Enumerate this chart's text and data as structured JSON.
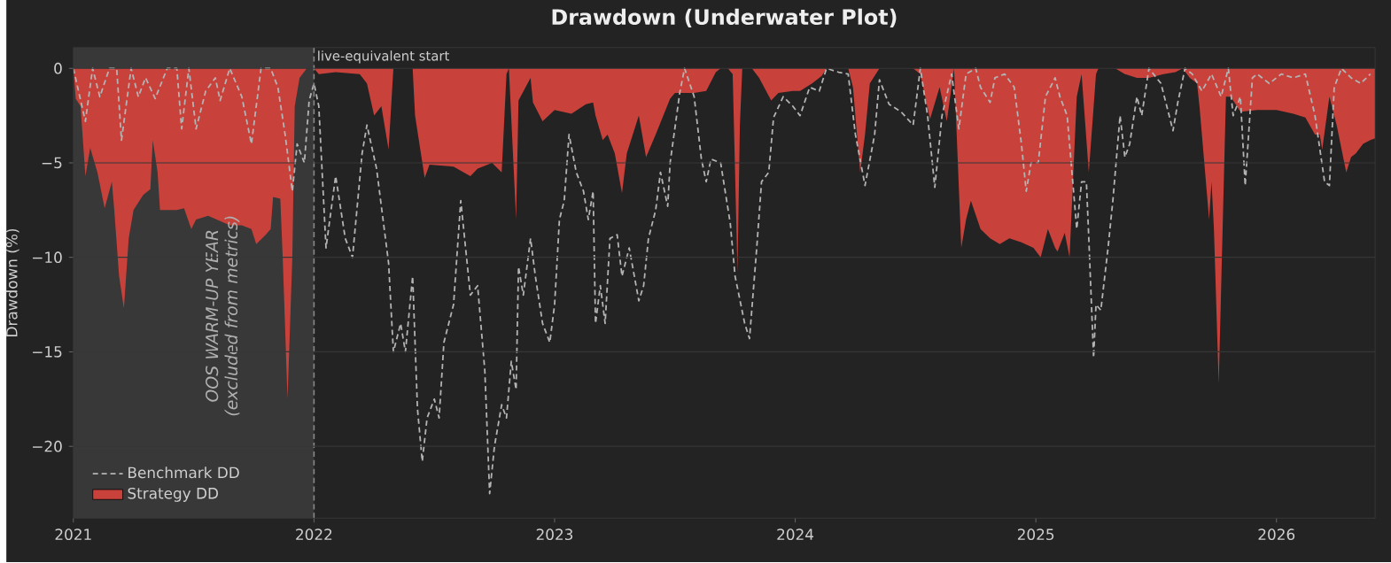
{
  "chart_data": {
    "type": "line",
    "title": "Drawdown (Underwater Plot)",
    "ylabel": "Drawdown (%)",
    "xlim": [
      "2021-01-01",
      "2026-05-29"
    ],
    "xticks": [
      "2021",
      "2022",
      "2023",
      "2024",
      "2025",
      "2026"
    ],
    "ylim": [
      -23.8,
      1.1
    ],
    "yticks": [
      {
        "value": -20,
        "label": "−20"
      },
      {
        "value": -15,
        "label": "−15"
      },
      {
        "value": -10,
        "label": "−10"
      },
      {
        "value": -5,
        "label": "−5"
      },
      0
    ],
    "grid": "y",
    "legend": "bottom left",
    "bands": [
      {
        "axis": "x",
        "from": "2021-01-01",
        "to": "2022-01-01",
        "label": "OOS WARM-UP YEAR (excluded from metrics)",
        "color": "#383838"
      }
    ],
    "ref_lines": [
      {
        "axis": "x",
        "value": "2022-01-01",
        "label": "live-equivalent start",
        "color": "#8a8a8a",
        "line_style": "dashed"
      }
    ],
    "series": [
      {
        "name": "Benchmark DD",
        "line_style": "dashed",
        "color": "#b4b4b4",
        "x": [
          "2021-01-01",
          "2021-01-18",
          "2021-02-01",
          "2021-02-10",
          "2021-02-23",
          "2021-03-07",
          "2021-03-16",
          "2021-03-30",
          "2021-04-08",
          "2021-04-21",
          "2021-05-04",
          "2021-05-22",
          "2021-06-06",
          "2021-06-13",
          "2021-06-24",
          "2021-07-07",
          "2021-07-20",
          "2021-08-03",
          "2021-08-12",
          "2021-08-26",
          "2021-09-13",
          "2021-09-27",
          "2021-10-14",
          "2021-10-27",
          "2021-11-06",
          "2021-11-19",
          "2021-11-28",
          "2021-12-07",
          "2021-12-16",
          "2021-12-25",
          "2022-01-01",
          "2022-01-08",
          "2022-01-21",
          "2022-02-04",
          "2022-02-17",
          "2022-03-01",
          "2022-03-14",
          "2022-03-23",
          "2022-04-06",
          "2022-04-24",
          "2022-05-03",
          "2022-05-12",
          "2022-05-20",
          "2022-05-30",
          "2022-06-08",
          "2022-06-15",
          "2022-06-21",
          "2022-07-01",
          "2022-07-09",
          "2022-07-18",
          "2022-08-01",
          "2022-08-12",
          "2022-08-28",
          "2022-09-07",
          "2022-09-17",
          "2022-09-26",
          "2022-10-03",
          "2022-10-12",
          "2022-10-19",
          "2022-10-28",
          "2022-11-02",
          "2022-11-08",
          "2022-11-15",
          "2022-11-24",
          "2022-12-03",
          "2022-12-12",
          "2022-12-23",
          "2023-01-01",
          "2023-01-08",
          "2023-01-17",
          "2023-01-24",
          "2023-02-04",
          "2023-02-12",
          "2023-02-21",
          "2023-02-28",
          "2023-03-05",
          "2023-03-11",
          "2023-03-18",
          "2023-03-27",
          "2023-04-06",
          "2023-04-15",
          "2023-04-24",
          "2023-05-07",
          "2023-05-16",
          "2023-05-25",
          "2023-06-03",
          "2023-06-12",
          "2023-06-21",
          "2023-06-27",
          "2023-07-09",
          "2023-07-18",
          "2023-08-01",
          "2023-08-10",
          "2023-08-19",
          "2023-08-27",
          "2023-09-10",
          "2023-09-24",
          "2023-10-02",
          "2023-10-16",
          "2023-10-25",
          "2023-11-03",
          "2023-11-12",
          "2023-11-21",
          "2023-11-30",
          "2023-12-13",
          "2023-12-27",
          "2024-01-10",
          "2024-01-23",
          "2024-02-06",
          "2024-02-19",
          "2024-03-07",
          "2024-03-20",
          "2024-04-03",
          "2024-04-16",
          "2024-04-30",
          "2024-05-08",
          "2024-05-22",
          "2024-06-09",
          "2024-06-27",
          "2024-07-10",
          "2024-07-19",
          "2024-08-02",
          "2024-08-13",
          "2024-08-25",
          "2024-09-05",
          "2024-09-16",
          "2024-09-30",
          "2024-10-09",
          "2024-10-23",
          "2024-11-01",
          "2024-11-15",
          "2024-11-28",
          "2024-12-11",
          "2024-12-18",
          "2024-12-25",
          "2025-01-03",
          "2025-01-17",
          "2025-01-30",
          "2025-02-08",
          "2025-02-17",
          "2025-02-26",
          "2025-03-03",
          "2025-03-10",
          "2025-03-17",
          "2025-03-23",
          "2025-03-29",
          "2025-04-04",
          "2025-04-10",
          "2025-04-19",
          "2025-04-28",
          "2025-05-07",
          "2025-05-16",
          "2025-05-25",
          "2025-06-03",
          "2025-06-12",
          "2025-06-21",
          "2025-07-09",
          "2025-07-27",
          "2025-08-05",
          "2025-08-14",
          "2025-08-27",
          "2025-09-10",
          "2025-09-24",
          "2025-10-10",
          "2025-10-20",
          "2025-10-29",
          "2025-11-06",
          "2025-11-16",
          "2025-11-25",
          "2025-12-04",
          "2025-12-22",
          "2026-01-08",
          "2026-01-26",
          "2026-02-13",
          "2026-03-02",
          "2026-03-15",
          "2026-03-21",
          "2026-03-28",
          "2026-04-11",
          "2026-04-24",
          "2026-05-08",
          "2026-05-25"
        ],
        "values": [
          0,
          -2.8,
          0,
          -1.5,
          0,
          0,
          -3.8,
          0,
          -1.5,
          -0.5,
          -1.6,
          0,
          0,
          -3.2,
          0,
          -3.2,
          -1.2,
          -0.5,
          -1.7,
          0,
          -1.5,
          -4,
          0,
          0,
          -1,
          -3.5,
          -6.5,
          -4,
          -5,
          -1.7,
          -0.8,
          -2,
          -9.5,
          -5.7,
          -9,
          -10,
          -4.5,
          -3,
          -5.3,
          -10.3,
          -15,
          -13.5,
          -15,
          -11,
          -18,
          -20.8,
          -18.5,
          -17.5,
          -18.5,
          -14.5,
          -12.5,
          -7,
          -12,
          -11.5,
          -16,
          -22.5,
          -20,
          -17.8,
          -18.5,
          -15.5,
          -17,
          -10.5,
          -12,
          -9,
          -11,
          -13.5,
          -14.5,
          -12.5,
          -8,
          -7,
          -3.5,
          -5.5,
          -6.5,
          -8,
          -6.5,
          -13.5,
          -11.5,
          -13.5,
          -9,
          -8.8,
          -11,
          -9.5,
          -12.3,
          -11.5,
          -9,
          -7.5,
          -5.5,
          -7.3,
          -5,
          -1.3,
          0,
          -1.5,
          -4.8,
          -6,
          -4.8,
          -5,
          -8.2,
          -11,
          -13.5,
          -14.3,
          -9.5,
          -6,
          -5.5,
          -2.6,
          -1.5,
          -2,
          -2.5,
          -1,
          -1.2,
          0,
          -0.2,
          -0.3,
          -3.5,
          -6.2,
          -3.5,
          -0.6,
          -1.9,
          -2.3,
          -3,
          0,
          -2.5,
          -6.3,
          -2.5,
          -0.3,
          -3.2,
          -0.3,
          0,
          -1,
          -1.8,
          -0.5,
          -0.3,
          -1,
          -4,
          -6.5,
          -5,
          -5,
          -1.5,
          -0.5,
          -1.5,
          -2.5,
          -5.5,
          -8.5,
          -6,
          -6,
          -9,
          -15.3,
          -12.5,
          -12.8,
          -9.5,
          -7,
          -2.5,
          -4.7,
          -4,
          -1.5,
          -2.5,
          0,
          -0.8,
          -3.3,
          -1.8,
          0,
          -0.3,
          -1.2,
          -0.3,
          -1.5,
          0,
          -2.5,
          -1.5,
          -6.2,
          -0.5,
          -0.3,
          -0.8,
          -0.3,
          -0.5,
          -0.3,
          -2.5,
          -6,
          -6.2,
          -1,
          0,
          -0.5,
          -0.8,
          -0.3
        ]
      },
      {
        "name": "Strategy DD",
        "type": "area",
        "color": "#c8423b",
        "x": [
          "2021-01-01",
          "2021-01-06",
          "2021-01-12",
          "2021-01-18",
          "2021-01-27",
          "2021-02-06",
          "2021-02-19",
          "2021-02-28",
          "2021-03-03",
          "2021-03-12",
          "2021-03-18",
          "2021-03-25",
          "2021-04-04",
          "2021-04-17",
          "2021-04-26",
          "2021-05-01",
          "2021-05-07",
          "2021-05-14",
          "2021-06-06",
          "2021-06-19",
          "2021-06-28",
          "2021-07-07",
          "2021-07-25",
          "2021-08-25",
          "2021-09-13",
          "2021-09-27",
          "2021-10-05",
          "2021-10-19",
          "2021-10-28",
          "2021-11-01",
          "2021-11-10",
          "2021-11-15",
          "2021-11-22",
          "2021-11-28",
          "2021-12-02",
          "2021-12-11",
          "2021-12-20",
          "2022-01-01",
          "2022-01-08",
          "2022-02-04",
          "2022-03-10",
          "2022-03-23",
          "2022-04-02",
          "2022-04-15",
          "2022-04-24",
          "2022-05-03",
          "2022-05-30",
          "2022-06-04",
          "2022-06-17",
          "2022-06-26",
          "2022-08-01",
          "2022-08-28",
          "2022-09-07",
          "2022-09-29",
          "2022-10-13",
          "2022-10-21",
          "2022-10-25",
          "2022-11-04",
          "2022-11-08",
          "2022-11-25",
          "2022-11-28",
          "2022-12-12",
          "2022-12-31",
          "2023-01-26",
          "2023-02-17",
          "2023-03-01",
          "2023-03-05",
          "2023-03-14",
          "2023-03-23",
          "2023-04-01",
          "2023-04-15",
          "2023-04-19",
          "2023-05-07",
          "2023-05-20",
          "2023-06-03",
          "2023-06-25",
          "2023-07-04",
          "2023-08-01",
          "2023-08-19",
          "2023-09-01",
          "2023-09-10",
          "2023-09-19",
          "2023-09-28",
          "2023-10-05",
          "2023-10-10",
          "2023-10-13",
          "2023-10-29",
          "2023-11-07",
          "2023-11-25",
          "2023-12-08",
          "2023-12-27",
          "2024-01-10",
          "2024-01-27",
          "2024-02-10",
          "2024-02-18",
          "2024-03-20",
          "2024-03-29",
          "2024-04-07",
          "2024-04-16",
          "2024-04-25",
          "2024-05-08",
          "2024-06-27",
          "2024-07-10",
          "2024-07-24",
          "2024-08-07",
          "2024-08-20",
          "2024-08-29",
          "2024-09-08",
          "2024-09-17",
          "2024-09-26",
          "2024-10-09",
          "2024-10-23",
          "2024-11-06",
          "2024-11-23",
          "2024-12-11",
          "2024-12-29",
          "2025-01-08",
          "2025-01-21",
          "2025-01-30",
          "2025-02-04",
          "2025-02-13",
          "2025-02-20",
          "2025-03-05",
          "2025-03-10",
          "2025-03-23",
          "2025-04-01",
          "2025-04-06",
          "2025-05-02",
          "2025-05-15",
          "2025-06-03",
          "2025-06-21",
          "2025-07-13",
          "2025-08-01",
          "2025-08-10",
          "2025-08-23",
          "2025-09-01",
          "2025-09-06",
          "2025-09-19",
          "2025-09-24",
          "2025-09-28",
          "2025-10-06",
          "2025-10-16",
          "2025-10-25",
          "2025-11-08",
          "2025-12-04",
          "2025-12-31",
          "2026-01-26",
          "2026-02-13",
          "2026-02-27",
          "2026-03-06",
          "2026-03-10",
          "2026-03-24",
          "2026-04-02",
          "2026-04-18",
          "2026-04-24",
          "2026-05-03",
          "2026-05-12",
          "2026-05-25",
          "2026-05-29"
        ],
        "values": [
          0,
          -1.6,
          -2,
          -5.7,
          -4.2,
          -5.5,
          -7.4,
          -6,
          -7.5,
          -11,
          -12.7,
          -9,
          -7.5,
          -6.7,
          -6.4,
          -3.8,
          -5.5,
          -7.5,
          -7.5,
          -7.4,
          -8.5,
          -8,
          -7.8,
          -8.3,
          -8.3,
          -8.5,
          -9.3,
          -8.8,
          -8.5,
          -6.8,
          -6.9,
          -10,
          -17.5,
          -10,
          -2,
          -0.5,
          0,
          0,
          -0.3,
          -0.2,
          -0.3,
          -0.8,
          -2.5,
          -2,
          -4.3,
          0,
          0,
          -2.5,
          -5.8,
          -5.1,
          -5.2,
          -5.7,
          -5.3,
          -5,
          -5.5,
          -0.3,
          0,
          -8,
          -1.7,
          -0.5,
          -1.8,
          -2.8,
          -2.2,
          -2.4,
          -1.9,
          -1.8,
          -2.5,
          -3.8,
          -3.5,
          -4.5,
          -6.6,
          -4.5,
          -2.5,
          -4.7,
          -3.5,
          -1.6,
          -1.3,
          -1.3,
          -1.2,
          -0.2,
          0,
          0,
          -0.3,
          -10.8,
          -3,
          0,
          0,
          -0.5,
          -1.7,
          -1.3,
          -1.2,
          -1.2,
          -0.8,
          -0.4,
          0,
          0,
          -1,
          -5.5,
          -3.5,
          -0.8,
          0,
          0,
          -0.3,
          -2.7,
          -1,
          -2.8,
          0,
          -9.5,
          -8,
          -7,
          -8.5,
          -9,
          -9.3,
          -9,
          -9.2,
          -9.5,
          -10,
          -8.5,
          -9.5,
          -9.7,
          -8.7,
          -10,
          -1.5,
          -0.3,
          -5.5,
          -0.3,
          0,
          0,
          -0.3,
          -0.5,
          -0.5,
          -0.3,
          -0.2,
          0,
          -0.5,
          -0.8,
          -2,
          -8,
          -6,
          -8.5,
          -16.7,
          -1.5,
          -1.5,
          -2.3,
          -2.2,
          -2.2,
          -2.4,
          -2.6,
          -3.5,
          -3.5,
          -4.3,
          -1.5,
          -3,
          -5.5,
          -4.7,
          -4.5,
          -4,
          -3.8,
          -3.7
        ]
      }
    ]
  }
}
